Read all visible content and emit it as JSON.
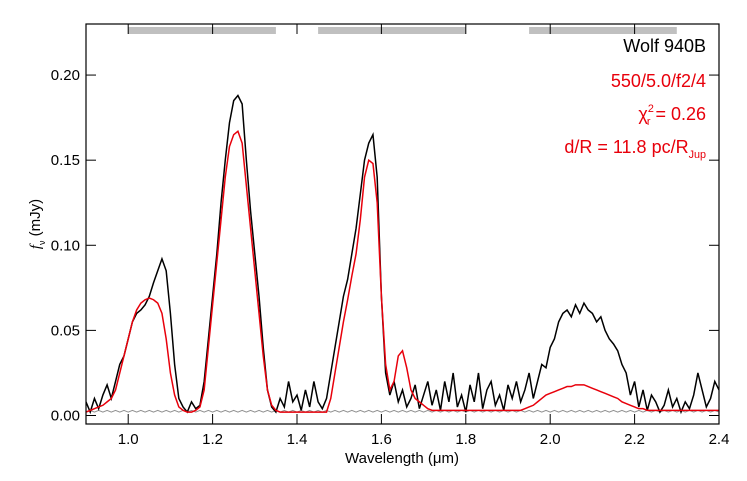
{
  "chart_data": {
    "type": "line",
    "x_label": "Wavelength (μm)",
    "y_label_parts": [
      {
        "text": "f",
        "style": "italic"
      },
      {
        "text": "ν",
        "shift": "sub"
      },
      {
        "text": " (mJy)"
      }
    ],
    "xlim": [
      0.9,
      2.4
    ],
    "ylim": [
      -0.005,
      0.23
    ],
    "xticks": [
      {
        "value": 1,
        "label": "1.0"
      },
      1.2,
      1.4,
      1.6,
      1.8,
      {
        "value": 2,
        "label": "2.0"
      },
      2.2,
      2.4
    ],
    "yticks": [
      {
        "value": 0,
        "label": "0.00"
      },
      {
        "value": 0.05,
        "label": "0.05"
      },
      {
        "value": 0.1,
        "label": "0.10"
      },
      {
        "value": 0.15,
        "label": "0.15"
      },
      {
        "value": 0.2,
        "label": "0.20"
      }
    ],
    "bands": [
      [
        1.0,
        1.35
      ],
      [
        1.45,
        1.8
      ],
      [
        1.95,
        2.3
      ]
    ],
    "band_color": "#c0c0c0",
    "annotations": [
      {
        "color": "#000000",
        "parts": [
          {
            "text": "Wolf 940B"
          }
        ]
      },
      {
        "color": "#e8000b",
        "parts": [
          {
            "text": "550/5.0/f2/4"
          }
        ]
      },
      {
        "color": "#e8000b",
        "parts": [
          {
            "text": "χ"
          },
          {
            "text": "2",
            "shift": "sup"
          },
          {
            "text": "r",
            "shift": "sub"
          },
          {
            "text": " = 0.26"
          }
        ]
      },
      {
        "color": "#e8000b",
        "parts": [
          {
            "text": "d/R = 11.8 pc/R"
          },
          {
            "text": "Jup",
            "shift": "sub"
          }
        ]
      }
    ],
    "x": [
      0.9,
      0.91,
      0.92,
      0.93,
      0.94,
      0.95,
      0.96,
      0.97,
      0.98,
      0.99,
      1.0,
      1.01,
      1.02,
      1.03,
      1.04,
      1.05,
      1.06,
      1.07,
      1.08,
      1.09,
      1.1,
      1.11,
      1.12,
      1.13,
      1.14,
      1.15,
      1.16,
      1.17,
      1.18,
      1.19,
      1.2,
      1.21,
      1.22,
      1.23,
      1.24,
      1.25,
      1.26,
      1.27,
      1.28,
      1.29,
      1.3,
      1.31,
      1.32,
      1.33,
      1.34,
      1.35,
      1.36,
      1.37,
      1.38,
      1.39,
      1.4,
      1.41,
      1.42,
      1.43,
      1.44,
      1.45,
      1.46,
      1.47,
      1.48,
      1.49,
      1.5,
      1.51,
      1.52,
      1.53,
      1.54,
      1.55,
      1.56,
      1.57,
      1.58,
      1.59,
      1.6,
      1.61,
      1.62,
      1.63,
      1.64,
      1.65,
      1.66,
      1.67,
      1.68,
      1.69,
      1.7,
      1.71,
      1.72,
      1.73,
      1.74,
      1.75,
      1.76,
      1.77,
      1.78,
      1.79,
      1.8,
      1.81,
      1.82,
      1.83,
      1.84,
      1.85,
      1.86,
      1.87,
      1.88,
      1.89,
      1.9,
      1.91,
      1.92,
      1.93,
      1.94,
      1.95,
      1.96,
      1.97,
      1.98,
      1.99,
      2.0,
      2.01,
      2.02,
      2.03,
      2.04,
      2.05,
      2.06,
      2.07,
      2.08,
      2.09,
      2.1,
      2.11,
      2.12,
      2.13,
      2.14,
      2.15,
      2.16,
      2.17,
      2.18,
      2.19,
      2.2,
      2.21,
      2.22,
      2.23,
      2.24,
      2.25,
      2.26,
      2.27,
      2.28,
      2.29,
      2.3,
      2.31,
      2.32,
      2.33,
      2.34,
      2.35,
      2.36,
      2.37,
      2.38,
      2.39,
      2.4
    ],
    "series": [
      {
        "color": "#909090",
        "values": [
          0.002,
          0.003,
          0.002,
          0.003,
          0.002,
          0.003,
          0.002,
          0.003,
          0.002,
          0.003,
          0.002,
          0.003,
          0.002,
          0.003,
          0.002,
          0.003,
          0.002,
          0.003,
          0.002,
          0.003,
          0.002,
          0.003,
          0.002,
          0.003,
          0.002,
          0.003,
          0.002,
          0.003,
          0.002,
          0.003,
          0.002,
          0.003,
          0.002,
          0.003,
          0.002,
          0.003,
          0.002,
          0.003,
          0.002,
          0.003,
          0.002,
          0.003,
          0.002,
          0.003,
          0.002,
          0.003,
          0.002,
          0.003,
          0.002,
          0.003,
          0.002,
          0.003,
          0.002,
          0.003,
          0.002,
          0.003,
          0.002,
          0.003,
          0.002,
          0.003,
          0.002,
          0.003,
          0.002,
          0.003,
          0.002,
          0.003,
          0.002,
          0.003,
          0.002,
          0.003,
          0.002,
          0.003,
          0.002,
          0.003,
          0.002,
          0.003,
          0.002,
          0.003,
          0.002,
          0.003,
          0.002,
          0.003,
          0.002,
          0.003,
          0.002,
          0.003,
          0.002,
          0.003,
          0.002,
          0.003,
          0.002,
          0.003,
          0.002,
          0.003,
          0.002,
          0.003,
          0.002,
          0.003,
          0.002,
          0.003,
          0.002,
          0.003,
          0.002,
          0.003,
          0.002,
          0.003,
          0.002,
          0.003,
          0.002,
          0.003,
          0.002,
          0.003,
          0.002,
          0.003,
          0.002,
          0.003,
          0.002,
          0.003,
          0.002,
          0.003,
          0.002,
          0.003,
          0.002,
          0.003,
          0.002,
          0.003,
          0.002,
          0.003,
          0.002,
          0.003,
          0.002,
          0.003,
          0.002,
          0.003,
          0.002,
          0.003,
          0.002,
          0.003,
          0.002,
          0.003,
          0.002,
          0.003,
          0.002,
          0.003,
          0.002,
          0.003,
          0.002,
          0.003,
          0.002,
          0.003,
          0.002
        ]
      },
      {
        "color": "#000000",
        "values": [
          0.008,
          0.002,
          0.01,
          0.004,
          0.012,
          0.018,
          0.01,
          0.02,
          0.03,
          0.035,
          0.045,
          0.055,
          0.06,
          0.062,
          0.065,
          0.07,
          0.078,
          0.085,
          0.092,
          0.085,
          0.06,
          0.03,
          0.01,
          0.005,
          0.002,
          0.008,
          0.004,
          0.006,
          0.02,
          0.045,
          0.07,
          0.095,
          0.125,
          0.15,
          0.172,
          0.185,
          0.188,
          0.183,
          0.15,
          0.12,
          0.095,
          0.07,
          0.04,
          0.015,
          0.005,
          0.002,
          0.01,
          0.005,
          0.02,
          0.008,
          0.012,
          0.003,
          0.015,
          0.005,
          0.02,
          0.008,
          0.004,
          0.01,
          0.025,
          0.04,
          0.055,
          0.07,
          0.08,
          0.095,
          0.11,
          0.13,
          0.15,
          0.16,
          0.165,
          0.14,
          0.07,
          0.025,
          0.012,
          0.02,
          0.008,
          0.015,
          0.005,
          0.01,
          0.018,
          0.004,
          0.012,
          0.02,
          0.006,
          0.015,
          0.003,
          0.02,
          0.008,
          0.025,
          0.005,
          0.012,
          0.002,
          0.018,
          0.008,
          0.025,
          0.004,
          0.015,
          0.02,
          0.006,
          0.012,
          0.003,
          0.018,
          0.01,
          0.02,
          0.008,
          0.015,
          0.025,
          0.01,
          0.02,
          0.03,
          0.028,
          0.04,
          0.045,
          0.055,
          0.06,
          0.062,
          0.058,
          0.065,
          0.06,
          0.066,
          0.062,
          0.06,
          0.055,
          0.058,
          0.05,
          0.045,
          0.042,
          0.038,
          0.03,
          0.025,
          0.012,
          0.02,
          0.005,
          0.015,
          0.003,
          0.012,
          0.008,
          0.002,
          0.006,
          0.015,
          0.005,
          0.01,
          0.002,
          0.008,
          0.004,
          0.012,
          0.025,
          0.015,
          0.005,
          0.01,
          0.02,
          0.015
        ]
      },
      {
        "color": "#e8000b",
        "values": [
          0.002,
          0.003,
          0.004,
          0.005,
          0.006,
          0.008,
          0.01,
          0.015,
          0.025,
          0.035,
          0.045,
          0.055,
          0.062,
          0.066,
          0.068,
          0.069,
          0.068,
          0.066,
          0.06,
          0.045,
          0.025,
          0.012,
          0.005,
          0.003,
          0.002,
          0.002,
          0.003,
          0.005,
          0.015,
          0.04,
          0.065,
          0.09,
          0.115,
          0.14,
          0.158,
          0.165,
          0.167,
          0.16,
          0.135,
          0.11,
          0.085,
          0.06,
          0.035,
          0.015,
          0.006,
          0.003,
          0.002,
          0.002,
          0.002,
          0.002,
          0.002,
          0.002,
          0.002,
          0.002,
          0.002,
          0.002,
          0.002,
          0.002,
          0.01,
          0.025,
          0.04,
          0.055,
          0.068,
          0.082,
          0.095,
          0.115,
          0.14,
          0.15,
          0.148,
          0.125,
          0.07,
          0.03,
          0.015,
          0.02,
          0.035,
          0.038,
          0.028,
          0.015,
          0.01,
          0.008,
          0.006,
          0.004,
          0.003,
          0.003,
          0.003,
          0.003,
          0.003,
          0.003,
          0.003,
          0.003,
          0.003,
          0.003,
          0.003,
          0.003,
          0.003,
          0.003,
          0.003,
          0.003,
          0.003,
          0.003,
          0.003,
          0.003,
          0.003,
          0.003,
          0.004,
          0.005,
          0.006,
          0.008,
          0.01,
          0.012,
          0.013,
          0.014,
          0.015,
          0.016,
          0.017,
          0.017,
          0.018,
          0.018,
          0.018,
          0.017,
          0.016,
          0.015,
          0.014,
          0.013,
          0.012,
          0.011,
          0.01,
          0.008,
          0.007,
          0.006,
          0.005,
          0.004,
          0.004,
          0.003,
          0.003,
          0.003,
          0.003,
          0.003,
          0.003,
          0.003,
          0.003,
          0.003,
          0.003,
          0.003,
          0.003,
          0.003,
          0.003,
          0.003,
          0.003,
          0.003,
          0.003
        ]
      }
    ]
  }
}
